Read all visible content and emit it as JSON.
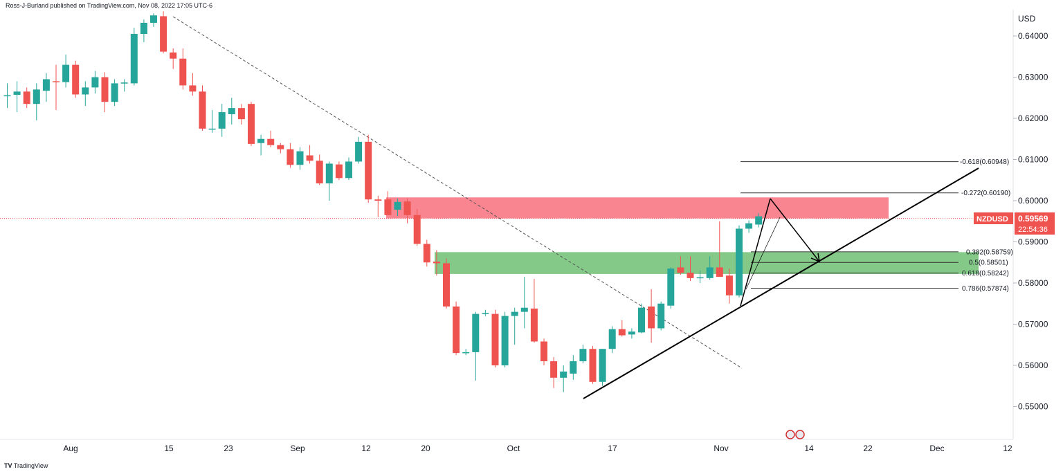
{
  "header": {
    "published": "Ross-J-Burland published on TradingView.com, Nov 08, 2022 17:05 UTC-6"
  },
  "footer": {
    "brand": "TradingView",
    "logo_glyph": "TV"
  },
  "colors": {
    "up": "#26a69a",
    "down": "#ef5350",
    "resistance_zone": "#f7707c",
    "support_zone": "#66bb6a",
    "price_tag": "#ef5350"
  },
  "price_axis": {
    "currency": "USD",
    "labels": [
      "0.64000",
      "0.63000",
      "0.62000",
      "0.61000",
      "0.60000",
      "0.59000",
      "0.58000",
      "0.57000",
      "0.56000",
      "0.55000"
    ]
  },
  "time_axis": {
    "labels": [
      "Aug",
      "15",
      "23",
      "Sep",
      "12",
      "20",
      "Oct",
      "17",
      "Nov",
      "14",
      "22",
      "Dec",
      "12"
    ]
  },
  "symbol_tag": {
    "symbol": "NZDUSD",
    "price": "0.59569",
    "countdown": "22:54:36"
  },
  "fib_labels": [
    "-0.618(0.60948)",
    "-0.272(0.60190)",
    "0.382(0.58759)",
    "0.5(0.58501)",
    "0.618(0.58242)",
    "0.786(0.57874)"
  ],
  "chart_data": {
    "type": "candlestick",
    "ylim": [
      0.545,
      0.6465
    ],
    "y_ticks": [
      0.55,
      0.56,
      0.57,
      0.58,
      0.59,
      0.6,
      0.61,
      0.62,
      0.63,
      0.64
    ],
    "candles": [
      {
        "o": 0.6255,
        "h": 0.6285,
        "l": 0.6225,
        "c": 0.6256
      },
      {
        "o": 0.6257,
        "h": 0.629,
        "l": 0.6215,
        "c": 0.6265
      },
      {
        "o": 0.6265,
        "h": 0.6275,
        "l": 0.6225,
        "c": 0.6235
      },
      {
        "o": 0.6235,
        "h": 0.6285,
        "l": 0.6195,
        "c": 0.627
      },
      {
        "o": 0.6267,
        "h": 0.631,
        "l": 0.624,
        "c": 0.6295
      },
      {
        "o": 0.629,
        "h": 0.633,
        "l": 0.622,
        "c": 0.6288
      },
      {
        "o": 0.6288,
        "h": 0.6355,
        "l": 0.6275,
        "c": 0.633
      },
      {
        "o": 0.633,
        "h": 0.634,
        "l": 0.625,
        "c": 0.6258
      },
      {
        "o": 0.6258,
        "h": 0.629,
        "l": 0.623,
        "c": 0.6275
      },
      {
        "o": 0.6275,
        "h": 0.6315,
        "l": 0.626,
        "c": 0.63
      },
      {
        "o": 0.63,
        "h": 0.6312,
        "l": 0.6215,
        "c": 0.624
      },
      {
        "o": 0.624,
        "h": 0.6295,
        "l": 0.623,
        "c": 0.6285
      },
      {
        "o": 0.6285,
        "h": 0.6295,
        "l": 0.6265,
        "c": 0.6287
      },
      {
        "o": 0.6285,
        "h": 0.642,
        "l": 0.628,
        "c": 0.6405
      },
      {
        "o": 0.6405,
        "h": 0.644,
        "l": 0.6385,
        "c": 0.6432
      },
      {
        "o": 0.6432,
        "h": 0.6455,
        "l": 0.6422,
        "c": 0.645
      },
      {
        "o": 0.6448,
        "h": 0.646,
        "l": 0.6358,
        "c": 0.6362
      },
      {
        "o": 0.636,
        "h": 0.637,
        "l": 0.632,
        "c": 0.6345
      },
      {
        "o": 0.6345,
        "h": 0.637,
        "l": 0.627,
        "c": 0.628
      },
      {
        "o": 0.628,
        "h": 0.631,
        "l": 0.6255,
        "c": 0.6265
      },
      {
        "o": 0.6265,
        "h": 0.628,
        "l": 0.617,
        "c": 0.6175
      },
      {
        "o": 0.6175,
        "h": 0.622,
        "l": 0.6165,
        "c": 0.6175
      },
      {
        "o": 0.6175,
        "h": 0.6235,
        "l": 0.6155,
        "c": 0.6215
      },
      {
        "o": 0.621,
        "h": 0.625,
        "l": 0.6185,
        "c": 0.6225
      },
      {
        "o": 0.6225,
        "h": 0.6235,
        "l": 0.6185,
        "c": 0.6198
      },
      {
        "o": 0.6235,
        "h": 0.624,
        "l": 0.6133,
        "c": 0.6138
      },
      {
        "o": 0.614,
        "h": 0.616,
        "l": 0.611,
        "c": 0.615
      },
      {
        "o": 0.615,
        "h": 0.617,
        "l": 0.613,
        "c": 0.6135
      },
      {
        "o": 0.6135,
        "h": 0.614,
        "l": 0.6115,
        "c": 0.6125
      },
      {
        "o": 0.6125,
        "h": 0.614,
        "l": 0.608,
        "c": 0.6087
      },
      {
        "o": 0.6087,
        "h": 0.613,
        "l": 0.6075,
        "c": 0.612
      },
      {
        "o": 0.611,
        "h": 0.6135,
        "l": 0.609,
        "c": 0.6097
      },
      {
        "o": 0.6097,
        "h": 0.6112,
        "l": 0.6038,
        "c": 0.6042
      },
      {
        "o": 0.6042,
        "h": 0.6095,
        "l": 0.6,
        "c": 0.609
      },
      {
        "o": 0.6088,
        "h": 0.6095,
        "l": 0.605,
        "c": 0.6055
      },
      {
        "o": 0.6055,
        "h": 0.6105,
        "l": 0.605,
        "c": 0.6095
      },
      {
        "o": 0.6095,
        "h": 0.6155,
        "l": 0.609,
        "c": 0.6143
      },
      {
        "o": 0.6143,
        "h": 0.616,
        "l": 0.5995,
        "c": 0.6003
      },
      {
        "o": 0.6003,
        "h": 0.6012,
        "l": 0.596,
        "c": 0.6
      },
      {
        "o": 0.6003,
        "h": 0.6023,
        "l": 0.597,
        "c": 0.5965
      },
      {
        "o": 0.5978,
        "h": 0.6005,
        "l": 0.5963,
        "c": 0.5997
      },
      {
        "o": 0.5998,
        "h": 0.6005,
        "l": 0.5945,
        "c": 0.5965
      },
      {
        "o": 0.5965,
        "h": 0.598,
        "l": 0.589,
        "c": 0.5895
      },
      {
        "o": 0.5895,
        "h": 0.5905,
        "l": 0.584,
        "c": 0.585
      },
      {
        "o": 0.5852,
        "h": 0.588,
        "l": 0.5818,
        "c": 0.5848
      },
      {
        "o": 0.5848,
        "h": 0.586,
        "l": 0.5738,
        "c": 0.5743
      },
      {
        "o": 0.5743,
        "h": 0.5755,
        "l": 0.5625,
        "c": 0.563
      },
      {
        "o": 0.563,
        "h": 0.564,
        "l": 0.5625,
        "c": 0.5632
      },
      {
        "o": 0.5632,
        "h": 0.573,
        "l": 0.5563,
        "c": 0.5725
      },
      {
        "o": 0.5725,
        "h": 0.5735,
        "l": 0.572,
        "c": 0.5727
      },
      {
        "o": 0.5725,
        "h": 0.5735,
        "l": 0.5595,
        "c": 0.56
      },
      {
        "o": 0.56,
        "h": 0.573,
        "l": 0.5595,
        "c": 0.572
      },
      {
        "o": 0.572,
        "h": 0.574,
        "l": 0.565,
        "c": 0.573
      },
      {
        "o": 0.573,
        "h": 0.5815,
        "l": 0.569,
        "c": 0.574
      },
      {
        "o": 0.5738,
        "h": 0.581,
        "l": 0.5655,
        "c": 0.5658
      },
      {
        "o": 0.5658,
        "h": 0.5665,
        "l": 0.56,
        "c": 0.561
      },
      {
        "o": 0.561,
        "h": 0.562,
        "l": 0.5545,
        "c": 0.557
      },
      {
        "o": 0.557,
        "h": 0.56,
        "l": 0.5535,
        "c": 0.5585
      },
      {
        "o": 0.558,
        "h": 0.5625,
        "l": 0.5565,
        "c": 0.561
      },
      {
        "o": 0.561,
        "h": 0.565,
        "l": 0.5605,
        "c": 0.564
      },
      {
        "o": 0.564,
        "h": 0.5647,
        "l": 0.5555,
        "c": 0.556
      },
      {
        "o": 0.556,
        "h": 0.564,
        "l": 0.555,
        "c": 0.564
      },
      {
        "o": 0.564,
        "h": 0.5695,
        "l": 0.563,
        "c": 0.5688
      },
      {
        "o": 0.5688,
        "h": 0.571,
        "l": 0.567,
        "c": 0.5673
      },
      {
        "o": 0.5675,
        "h": 0.569,
        "l": 0.5665,
        "c": 0.5682
      },
      {
        "o": 0.568,
        "h": 0.575,
        "l": 0.5678,
        "c": 0.574
      },
      {
        "o": 0.5743,
        "h": 0.5785,
        "l": 0.5655,
        "c": 0.569
      },
      {
        "o": 0.569,
        "h": 0.5755,
        "l": 0.5685,
        "c": 0.575
      },
      {
        "o": 0.5745,
        "h": 0.5838,
        "l": 0.5738,
        "c": 0.5835
      },
      {
        "o": 0.5838,
        "h": 0.5865,
        "l": 0.582,
        "c": 0.5825
      },
      {
        "o": 0.5825,
        "h": 0.5865,
        "l": 0.5805,
        "c": 0.5812
      },
      {
        "o": 0.5812,
        "h": 0.583,
        "l": 0.58,
        "c": 0.5814
      },
      {
        "o": 0.5812,
        "h": 0.5865,
        "l": 0.5808,
        "c": 0.5838
      },
      {
        "o": 0.5838,
        "h": 0.595,
        "l": 0.5815,
        "c": 0.5815
      },
      {
        "o": 0.5818,
        "h": 0.5835,
        "l": 0.575,
        "c": 0.577
      },
      {
        "o": 0.577,
        "h": 0.594,
        "l": 0.5765,
        "c": 0.5932
      },
      {
        "o": 0.5932,
        "h": 0.5952,
        "l": 0.5922,
        "c": 0.5945
      },
      {
        "o": 0.5942,
        "h": 0.597,
        "l": 0.5935,
        "c": 0.5962
      }
    ],
    "resistance_zone": [
      0.5957,
      0.6008
    ],
    "support_zone": [
      0.5822,
      0.5875
    ],
    "fib_levels": [
      0.60948,
      0.6019,
      0.58759,
      0.58501,
      0.58242,
      0.57874
    ],
    "current_price": 0.59569
  }
}
